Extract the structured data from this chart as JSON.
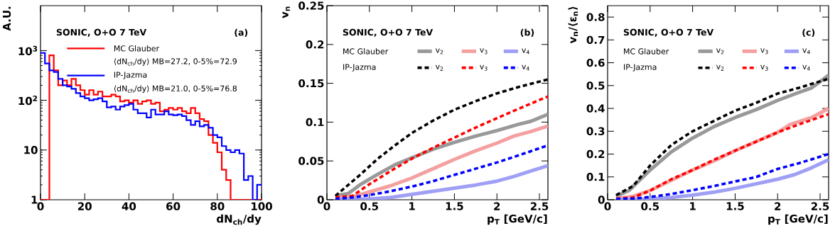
{
  "chart_data": [
    {
      "type": "histogram",
      "title": "SONIC, O+O 7 TeV",
      "xlabel": "dN$_{ch}$/dy",
      "ylabel": "A.U.",
      "annotations": [
        "(a)",
        "⟨dN$_{ch}$/dy⟩ MB=27.2, 0-5%=72.9",
        "⟨dN$_{ch}$/dy⟩ MB=21.0, 0-5%=76.8"
      ],
      "log": "y",
      "legend": "top",
      "xlim": [
        0,
        100
      ],
      "ylim": [
        1,
        8000
      ],
      "xticks": [
        0,
        20,
        40,
        60,
        80,
        100
      ],
      "yticks": [
        1,
        10,
        {
          "value": 100,
          "label": "10$^{2}$"
        },
        {
          "value": 1000,
          "label": "10$^{3}$"
        }
      ],
      "bins": [
        0,
        2,
        4,
        6,
        8,
        10,
        12,
        14,
        16,
        18,
        20,
        22,
        24,
        26,
        28,
        30,
        32,
        34,
        36,
        38,
        40,
        42,
        44,
        46,
        48,
        50,
        52,
        54,
        56,
        58,
        60,
        62,
        64,
        66,
        68,
        70,
        72,
        74,
        76,
        78,
        80,
        82,
        84,
        86,
        88,
        90,
        92,
        94,
        96,
        98,
        100
      ],
      "series": [
        {
          "name": "MC Glauber",
          "color": "#ff0000",
          "values": [
            1,
            1,
            800,
            400,
            200,
            250,
            200,
            270,
            200,
            160,
            130,
            160,
            130,
            150,
            120,
            120,
            130,
            120,
            95,
            100,
            90,
            100,
            85,
            95,
            100,
            85,
            90,
            60,
            65,
            70,
            65,
            70,
            60,
            55,
            70,
            55,
            42,
            38,
            20,
            14,
            9,
            4,
            2.5,
            1,
            1,
            1,
            1,
            1,
            1,
            1
          ]
        },
        {
          "name": "IP-Jazma",
          "color": "#0000ff",
          "values": [
            900,
            550,
            400,
            370,
            270,
            200,
            190,
            170,
            140,
            120,
            110,
            100,
            105,
            110,
            95,
            72,
            75,
            65,
            75,
            80,
            85,
            65,
            55,
            55,
            45,
            65,
            52,
            52,
            60,
            52,
            50,
            52,
            48,
            40,
            32,
            38,
            30,
            32,
            28,
            20,
            18,
            12,
            10,
            9,
            10,
            8.5,
            2.5,
            3,
            1,
            2
          ]
        }
      ]
    },
    {
      "type": "line",
      "title": "SONIC, O+O 7 TeV",
      "xlabel": "p$_{T}$ [GeV/c]",
      "ylabel": "v$_{n}$",
      "annotations": [
        "(b)",
        "MC Glauber",
        "IP-Jazma"
      ],
      "legend": "top",
      "xlim": [
        0,
        2.6
      ],
      "ylim": [
        0,
        0.25
      ],
      "xticks": [
        0,
        0.5,
        1,
        1.5,
        2,
        2.5
      ],
      "yticks": [
        0,
        0.05,
        0.1,
        0.15,
        0.2,
        0.25
      ],
      "series": [
        {
          "name": "v$_{2}$",
          "color": "#999999",
          "line_style": "solid",
          "x": [
            0.1,
            0.25,
            0.4,
            0.6,
            0.8,
            1.0,
            1.25,
            1.5,
            1.75,
            2.0,
            2.25,
            2.4,
            2.6
          ],
          "values": [
            0.005,
            0.008,
            0.02,
            0.033,
            0.045,
            0.054,
            0.065,
            0.074,
            0.082,
            0.089,
            0.097,
            0.101,
            0.11
          ]
        },
        {
          "name": "v$_{3}$",
          "color": "#f4a0a0",
          "line_style": "solid",
          "x": [
            0.1,
            0.3,
            0.5,
            0.75,
            1.0,
            1.25,
            1.5,
            1.75,
            2.0,
            2.2,
            2.4,
            2.6
          ],
          "values": [
            0.002,
            0.004,
            0.01,
            0.018,
            0.028,
            0.04,
            0.052,
            0.063,
            0.073,
            0.082,
            0.088,
            0.095
          ]
        },
        {
          "name": "v$_{4}$",
          "color": "#9f9ff5",
          "line_style": "solid",
          "x": [
            0.1,
            0.5,
            0.75,
            1.0,
            1.25,
            1.5,
            1.75,
            2.0,
            2.2,
            2.4,
            2.6
          ],
          "values": [
            0.001,
            0.001,
            0.003,
            0.007,
            0.011,
            0.015,
            0.019,
            0.024,
            0.03,
            0.037,
            0.044
          ]
        },
        {
          "name": "v$_{2}$",
          "color": "#000000",
          "line_style": "dashed",
          "x": [
            0.1,
            0.4,
            0.6,
            0.8,
            1.0,
            1.25,
            1.5,
            1.75,
            2.0,
            2.25,
            2.6
          ],
          "values": [
            0.005,
            0.033,
            0.053,
            0.07,
            0.086,
            0.102,
            0.116,
            0.127,
            0.137,
            0.145,
            0.155
          ]
        },
        {
          "name": "v$_{3}$",
          "color": "#ff0000",
          "line_style": "dashed",
          "x": [
            0.1,
            0.3,
            0.5,
            0.75,
            1.0,
            1.25,
            1.5,
            1.75,
            2.0,
            2.25,
            2.6
          ],
          "values": [
            0.003,
            0.005,
            0.02,
            0.037,
            0.053,
            0.067,
            0.08,
            0.093,
            0.105,
            0.117,
            0.133
          ]
        },
        {
          "name": "v$_{4}$",
          "color": "#0000ff",
          "line_style": "dashed",
          "x": [
            0.1,
            0.3,
            0.5,
            0.75,
            1.0,
            1.25,
            1.5,
            1.75,
            2.0,
            2.25,
            2.6
          ],
          "values": [
            0.001,
            0.003,
            0.006,
            0.011,
            0.017,
            0.024,
            0.032,
            0.04,
            0.048,
            0.057,
            0.07
          ]
        }
      ]
    },
    {
      "type": "line",
      "title": "SONIC, O+O 7 TeV",
      "xlabel": "p$_{T}$ [GeV/c]",
      "ylabel": "v$_{n}$/⟨ε$_{n}$⟩",
      "annotations": [
        "(c)",
        "MC Glauber",
        "IP-Jazma"
      ],
      "legend": "top",
      "xlim": [
        0,
        2.6
      ],
      "ylim": [
        0,
        0.85
      ],
      "xticks": [
        0,
        0.5,
        1,
        1.5,
        2,
        2.5
      ],
      "yticks": [
        0,
        0.1,
        0.2,
        0.3,
        0.4,
        0.5,
        0.6,
        0.7,
        0.8
      ],
      "series": [
        {
          "name": "v$_{2}$",
          "color": "#999999",
          "line_style": "solid",
          "x": [
            0.1,
            0.25,
            0.5,
            0.75,
            1.0,
            1.25,
            1.5,
            1.75,
            2.0,
            2.25,
            2.4,
            2.6
          ],
          "values": [
            0.015,
            0.04,
            0.13,
            0.21,
            0.27,
            0.32,
            0.36,
            0.395,
            0.435,
            0.47,
            0.49,
            0.545
          ]
        },
        {
          "name": "v$_{3}$",
          "color": "#f4a0a0",
          "line_style": "solid",
          "x": [
            0.1,
            0.3,
            0.5,
            0.75,
            1.0,
            1.25,
            1.5,
            1.75,
            2.0,
            2.15,
            2.4,
            2.6
          ],
          "values": [
            0.005,
            0.015,
            0.04,
            0.085,
            0.13,
            0.17,
            0.215,
            0.255,
            0.295,
            0.33,
            0.36,
            0.4
          ]
        },
        {
          "name": "v$_{4}$",
          "color": "#9f9ff5",
          "line_style": "solid",
          "x": [
            0.1,
            0.5,
            0.75,
            1.0,
            1.25,
            1.5,
            1.75,
            2.0,
            2.2,
            2.4,
            2.6
          ],
          "values": [
            0.002,
            0.003,
            0.01,
            0.02,
            0.033,
            0.05,
            0.07,
            0.09,
            0.11,
            0.14,
            0.175
          ]
        },
        {
          "name": "v$_{2}$",
          "color": "#000000",
          "line_style": "dashed",
          "x": [
            0.1,
            0.3,
            0.5,
            0.75,
            1.0,
            1.25,
            1.5,
            1.75,
            2.0,
            2.25,
            2.6
          ],
          "values": [
            0.02,
            0.06,
            0.15,
            0.24,
            0.3,
            0.345,
            0.39,
            0.425,
            0.465,
            0.49,
            0.53
          ]
        },
        {
          "name": "v$_{3}$",
          "color": "#ff0000",
          "line_style": "dashed",
          "x": [
            0.1,
            0.3,
            0.5,
            0.75,
            1.0,
            1.25,
            1.5,
            1.75,
            2.0,
            2.25,
            2.6
          ],
          "values": [
            0.005,
            0.01,
            0.04,
            0.09,
            0.13,
            0.175,
            0.215,
            0.255,
            0.295,
            0.33,
            0.375
          ]
        },
        {
          "name": "v$_{4}$",
          "color": "#0000ff",
          "line_style": "dashed",
          "x": [
            0.1,
            0.3,
            0.5,
            0.75,
            1.0,
            1.25,
            1.5,
            1.75,
            2.0,
            2.25,
            2.6
          ],
          "values": [
            0.003,
            0.005,
            0.012,
            0.025,
            0.042,
            0.06,
            0.08,
            0.1,
            0.135,
            0.16,
            0.2
          ]
        }
      ]
    }
  ]
}
